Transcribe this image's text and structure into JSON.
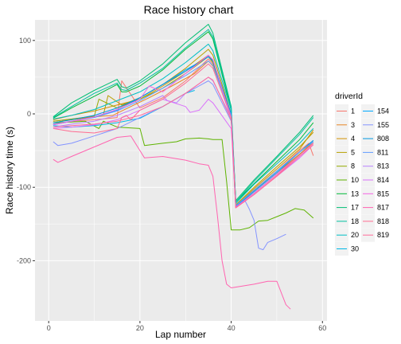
{
  "chart_data": {
    "type": "line",
    "title": "Race history chart",
    "xlabel": "Lap number",
    "ylabel": "Race history time (s)",
    "xlim": [
      -3,
      61
    ],
    "ylim": [
      -282,
      128
    ],
    "x_ticks": [
      0,
      20,
      40,
      60
    ],
    "y_ticks": [
      -200,
      -100,
      0,
      100
    ],
    "grid": true,
    "legend": {
      "title": "driverId",
      "placement": "right",
      "columns": 2
    },
    "series": [
      {
        "name": "1",
        "color": "#F8766D",
        "x": [
          1,
          5,
          10,
          15,
          16,
          20,
          25,
          30,
          35,
          36,
          40,
          41,
          45,
          50,
          55,
          57,
          58
        ],
        "y": [
          -14,
          -10,
          -8,
          -5,
          45,
          8,
          22,
          45,
          75,
          68,
          0,
          -125,
          -105,
          -78,
          -50,
          -40,
          -57
        ]
      },
      {
        "name": "3",
        "color": "#E88526",
        "x": [
          1,
          5,
          10,
          14,
          18,
          22,
          27,
          32,
          35,
          36,
          40,
          41,
          45,
          50,
          55,
          58
        ],
        "y": [
          -10,
          -7,
          -4,
          -2,
          10,
          22,
          38,
          55,
          72,
          65,
          0,
          -124,
          -105,
          -80,
          -55,
          -38
        ]
      },
      {
        "name": "4",
        "color": "#D39200",
        "x": [
          1,
          5,
          10,
          15,
          20,
          25,
          30,
          35,
          36,
          40,
          41,
          45,
          50,
          55,
          58
        ],
        "y": [
          -8,
          -2,
          4,
          12,
          20,
          38,
          58,
          80,
          72,
          0,
          -125,
          -102,
          -75,
          -48,
          -22
        ]
      },
      {
        "name": "5",
        "color": "#B79F00",
        "x": [
          1,
          5,
          10,
          12,
          13,
          16,
          20,
          25,
          30,
          35,
          36,
          40,
          41,
          45,
          50,
          55,
          58
        ],
        "y": [
          -12,
          -8,
          -4,
          -1,
          25,
          12,
          22,
          40,
          62,
          88,
          80,
          0,
          -124,
          -100,
          -72,
          -45,
          -25
        ]
      },
      {
        "name": "8",
        "color": "#93AA00",
        "x": [
          1,
          5,
          10,
          11,
          15,
          20,
          25,
          30,
          35,
          36,
          40,
          41,
          45,
          50,
          55,
          58
        ],
        "y": [
          -10,
          -7,
          -3,
          20,
          8,
          20,
          35,
          55,
          78,
          70,
          -5,
          -126,
          -108,
          -82,
          -55,
          -40
        ]
      },
      {
        "name": "10",
        "color": "#5EB300",
        "x": [
          1,
          5,
          8,
          11,
          12,
          15,
          20,
          21,
          25,
          28,
          30,
          33,
          35,
          36,
          37,
          38,
          39,
          40,
          42,
          44,
          46,
          48,
          50,
          52,
          54,
          56,
          58
        ],
        "y": [
          -12,
          -11,
          -10,
          -20,
          -10,
          -18,
          -20,
          -43,
          -40,
          -38,
          -34,
          -33,
          -34,
          -35,
          -35,
          -35,
          -92,
          -158,
          -158,
          -155,
          -146,
          -145,
          -140,
          -135,
          -129,
          -131,
          -142
        ]
      },
      {
        "name": "13",
        "color": "#00BA38",
        "x": [
          1,
          5,
          10,
          15,
          16,
          17,
          20,
          25,
          30,
          35,
          36,
          40,
          41,
          45,
          50,
          55,
          58
        ],
        "y": [
          -6,
          8,
          24,
          40,
          30,
          30,
          38,
          60,
          88,
          112,
          102,
          5,
          -120,
          -95,
          -65,
          -35,
          -12
        ]
      },
      {
        "name": "17",
        "color": "#00BF74",
        "x": [
          1,
          5,
          10,
          15,
          16,
          17,
          20,
          25,
          30,
          35,
          36,
          40,
          41,
          45,
          50,
          55,
          58
        ],
        "y": [
          -4,
          15,
          32,
          47,
          37,
          35,
          45,
          68,
          97,
          122,
          110,
          10,
          -118,
          -90,
          -58,
          -25,
          -2
        ]
      },
      {
        "name": "18",
        "color": "#00C19F",
        "x": [
          1,
          5,
          10,
          15,
          16,
          17,
          20,
          25,
          30,
          35,
          36,
          40,
          41,
          45,
          50,
          55,
          58
        ],
        "y": [
          -5,
          10,
          28,
          42,
          33,
          32,
          42,
          62,
          90,
          115,
          105,
          8,
          -120,
          -92,
          -60,
          -28,
          -5
        ]
      },
      {
        "name": "20",
        "color": "#00BFC4",
        "x": [
          1,
          5,
          10,
          15,
          20,
          25,
          30,
          35,
          36,
          40,
          41,
          45,
          50,
          55,
          58
        ],
        "y": [
          -7,
          -2,
          6,
          18,
          30,
          48,
          70,
          95,
          86,
          5,
          -122,
          -96,
          -68,
          -40,
          -20
        ]
      },
      {
        "name": "30",
        "color": "#00B8E7",
        "x": [
          1,
          5,
          10,
          15,
          20,
          25,
          30,
          32
        ],
        "y": [
          -16,
          -18,
          -16,
          -12,
          -6,
          10,
          28,
          32
        ]
      },
      {
        "name": "154",
        "color": "#00A9FF",
        "x": [
          1,
          5,
          10,
          15,
          20,
          25,
          30,
          33,
          35,
          36,
          40,
          41,
          45,
          50,
          55,
          58
        ],
        "y": [
          -15,
          -10,
          -4,
          5,
          22,
          40,
          60,
          70,
          78,
          72,
          -5,
          -126,
          -106,
          -80,
          -52,
          -38
        ]
      },
      {
        "name": "155",
        "color": "#8494FF",
        "x": [
          1,
          2,
          5,
          10,
          15,
          20,
          25,
          30,
          35,
          36,
          40,
          41,
          43,
          44,
          45,
          46,
          47,
          48,
          50,
          52
        ],
        "y": [
          -38,
          -43,
          -40,
          -30,
          -20,
          -5,
          10,
          28,
          45,
          40,
          -10,
          -128,
          -118,
          -130,
          -145,
          -183,
          -185,
          -175,
          -170,
          -164
        ]
      },
      {
        "name": "808",
        "color": "#0096E0",
        "x": [
          1,
          5,
          10,
          15,
          20,
          25,
          30,
          35,
          36,
          40,
          41,
          45,
          50,
          55,
          58
        ],
        "y": [
          -12,
          -8,
          -2,
          8,
          22,
          40,
          58,
          78,
          72,
          0,
          -125,
          -104,
          -78,
          -52,
          -36
        ]
      },
      {
        "name": "811",
        "color": "#619CFF",
        "x": [
          1,
          5,
          10,
          15,
          20,
          25,
          30,
          35,
          36,
          40,
          41,
          45,
          50,
          55,
          58
        ],
        "y": [
          -14,
          -10,
          -5,
          4,
          18,
          35,
          52,
          72,
          66,
          -2,
          -125,
          -104,
          -78,
          -52,
          -38
        ]
      },
      {
        "name": "813",
        "color": "#B983FF",
        "x": [
          1,
          5,
          10,
          15,
          20,
          25,
          26,
          28,
          30,
          35,
          36,
          40,
          41,
          45,
          50,
          55,
          58
        ],
        "y": [
          -18,
          -14,
          -10,
          -2,
          10,
          25,
          18,
          15,
          28,
          50,
          45,
          -5,
          -127,
          -108,
          -82,
          -56,
          -40
        ]
      },
      {
        "name": "814",
        "color": "#DB72FB",
        "x": [
          1,
          5,
          10,
          15,
          20,
          25,
          30,
          31,
          33,
          35,
          36,
          40,
          41,
          45,
          50,
          55,
          58
        ],
        "y": [
          -20,
          -18,
          -15,
          -8,
          5,
          20,
          10,
          2,
          5,
          20,
          15,
          -20,
          -128,
          -110,
          -85,
          -60,
          -42
        ]
      },
      {
        "name": "815",
        "color": "#F564E3",
        "x": [
          1,
          5,
          10,
          15,
          20,
          22,
          25,
          28,
          30,
          35,
          36,
          40,
          41,
          45,
          50,
          55,
          58
        ],
        "y": [
          -15,
          -10,
          -4,
          6,
          20,
          38,
          30,
          45,
          55,
          80,
          74,
          -5,
          -127,
          -108,
          -82,
          -56,
          -40
        ]
      },
      {
        "name": "817",
        "color": "#FF64B0",
        "x": [
          1,
          2,
          5,
          10,
          15,
          18,
          20,
          21,
          25,
          30,
          33,
          35,
          36,
          37,
          38,
          39,
          40,
          45,
          48,
          50,
          52,
          53
        ],
        "y": [
          -62,
          -66,
          -58,
          -45,
          -32,
          -30,
          -50,
          -60,
          -58,
          -63,
          -68,
          -70,
          -85,
          -140,
          -200,
          -232,
          -237,
          -232,
          -228,
          -228,
          -260,
          -266
        ]
      },
      {
        "name": "818",
        "color": "#FF6C91",
        "x": [
          1,
          5,
          10,
          15,
          16,
          17,
          18,
          20,
          25,
          30,
          35,
          36,
          40,
          41,
          45,
          50,
          55,
          58
        ],
        "y": [
          -20,
          -24,
          -26,
          -20,
          -5,
          -2,
          -8,
          5,
          20,
          42,
          68,
          62,
          -5,
          -128,
          -110,
          -84,
          -56,
          -40
        ]
      },
      {
        "name": "819",
        "color": "#FF6B9A",
        "x": [
          1,
          5,
          10,
          15,
          20,
          25,
          30,
          35,
          36,
          40,
          41,
          45,
          50,
          55,
          58
        ],
        "y": [
          -18,
          -16,
          -14,
          -10,
          -2,
          10,
          28,
          50,
          46,
          -8,
          -128,
          -110,
          -85,
          -58,
          -42
        ]
      }
    ]
  }
}
